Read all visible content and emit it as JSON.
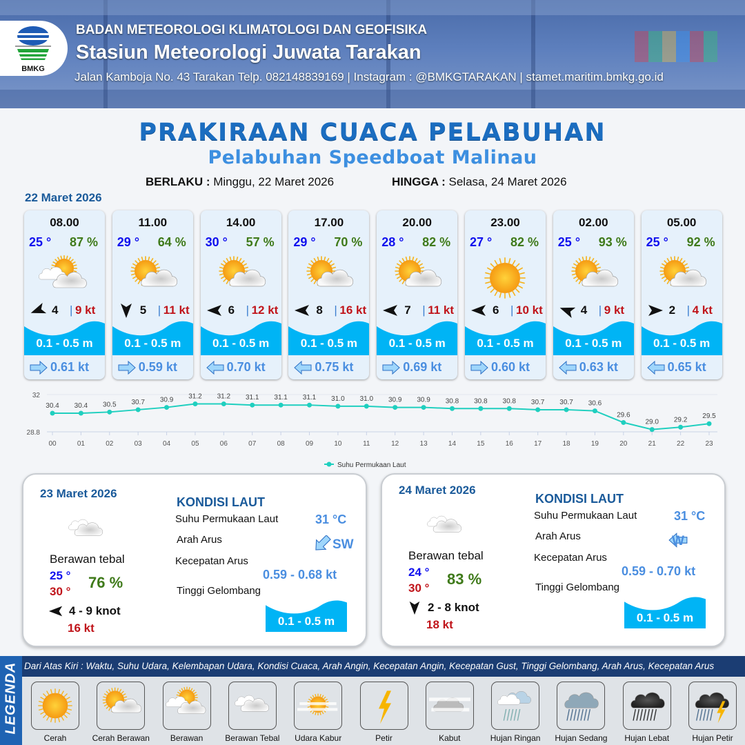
{
  "header": {
    "agency": "BADAN METEOROLOGI KLIMATOLOGI DAN GEOFISIKA",
    "station": "Stasiun Meteorologi Juwata Tarakan",
    "contact": "Jalan Kamboja No. 43 Tarakan  Telp. 082148839169 | Instagram : @BMKGTARAKAN | stamet.maritim.bmkg.go.id",
    "logo_text": "BMKG"
  },
  "title": "PRAKIRAAN CUACA PELABUHAN",
  "subtitle": "Pelabuhan Speedboat Malinau",
  "validity": {
    "from_label": "BERLAKU :",
    "from": "Minggu, 22 Maret 2026",
    "to_label": "HINGGA :",
    "to": "Selasa, 24 Maret 2026"
  },
  "day1": {
    "date": "22 Maret 2026",
    "cards": [
      {
        "time": "08.00",
        "temp": "25 °",
        "hum": "87 %",
        "icon": "berawan",
        "wind_dir": "WSW",
        "wind": "4",
        "gust": "9 kt",
        "wave": "0.1 - 0.5 m",
        "cur_dir": "right",
        "cur": "0.61 kt"
      },
      {
        "time": "11.00",
        "temp": "29 °",
        "hum": "64 %",
        "icon": "cerah-berawan",
        "wind_dir": "S",
        "wind": "5",
        "gust": "11 kt",
        "wave": "0.1 - 0.5 m",
        "cur_dir": "right",
        "cur": "0.59 kt"
      },
      {
        "time": "14.00",
        "temp": "30 °",
        "hum": "57 %",
        "icon": "cerah-berawan",
        "wind_dir": "W",
        "wind": "6",
        "gust": "12 kt",
        "wave": "0.1 - 0.5 m",
        "cur_dir": "left",
        "cur": "0.70 kt"
      },
      {
        "time": "17.00",
        "temp": "29 °",
        "hum": "70 %",
        "icon": "cerah-berawan",
        "wind_dir": "W",
        "wind": "8",
        "gust": "16 kt",
        "wave": "0.1 - 0.5 m",
        "cur_dir": "left",
        "cur": "0.75 kt"
      },
      {
        "time": "20.00",
        "temp": "28 °",
        "hum": "82 %",
        "icon": "cerah-berawan",
        "wind_dir": "W",
        "wind": "7",
        "gust": "11 kt",
        "wave": "0.1 - 0.5 m",
        "cur_dir": "right",
        "cur": "0.69 kt"
      },
      {
        "time": "23.00",
        "temp": "27 °",
        "hum": "82 %",
        "icon": "cerah",
        "wind_dir": "W",
        "wind": "6",
        "gust": "10 kt",
        "wave": "0.1 - 0.5 m",
        "cur_dir": "right",
        "cur": "0.60 kt"
      },
      {
        "time": "02.00",
        "temp": "25 °",
        "hum": "93 %",
        "icon": "cerah-berawan",
        "wind_dir": "WNW",
        "wind": "4",
        "gust": "9 kt",
        "wave": "0.1 - 0.5 m",
        "cur_dir": "left",
        "cur": "0.63 kt"
      },
      {
        "time": "05.00",
        "temp": "25 °",
        "hum": "92 %",
        "icon": "cerah-berawan",
        "wind_dir": "E",
        "wind": "2",
        "gust": "4 kt",
        "wave": "0.1 - 0.5 m",
        "cur_dir": "left",
        "cur": "0.65 kt"
      }
    ]
  },
  "chart_data": {
    "type": "line",
    "x": [
      "00",
      "01",
      "02",
      "03",
      "04",
      "05",
      "06",
      "07",
      "08",
      "09",
      "10",
      "11",
      "12",
      "13",
      "14",
      "15",
      "16",
      "17",
      "18",
      "19",
      "20",
      "21",
      "22",
      "23"
    ],
    "series": [
      {
        "name": "Suhu Permukaan Laut",
        "values": [
          30.4,
          30.4,
          30.5,
          30.7,
          30.9,
          31.2,
          31.2,
          31.1,
          31.1,
          31.1,
          31.0,
          31.0,
          30.9,
          30.9,
          30.8,
          30.8,
          30.8,
          30.7,
          30.7,
          30.6,
          29.6,
          29.0,
          29.2,
          29.5
        ]
      }
    ],
    "yticks": [
      "32",
      "28.8"
    ],
    "ylim": [
      28.8,
      32
    ],
    "color": "#1fcfbf",
    "legend": "bottom",
    "grid": false
  },
  "days": [
    {
      "date": "23 Maret 2026",
      "icon": "berawan-tebal",
      "cond": "Berawan tebal",
      "tmin": "25 °",
      "tmax": "30 °",
      "hum": "76 %",
      "wind_dir": "W",
      "wind": "4  - 9 knot",
      "gust": "16 kt",
      "sea": {
        "title": "KONDISI LAUT",
        "sst_label": "Suhu Permukaan Laut",
        "sst": "31 °C",
        "dir_label": "Arah Arus",
        "dir": "SW",
        "speed_label": "Kecepatan Arus",
        "speed": "0.59 - 0.68 kt",
        "wave_label": "Tinggi Gelombang",
        "wave": "0.1 - 0.5 m"
      }
    },
    {
      "date": "24 Maret 2026",
      "icon": "berawan-tebal",
      "cond": "Berawan tebal",
      "tmin": "24 °",
      "tmax": "30 °",
      "hum": "83 %",
      "wind_dir": "S",
      "wind": "2  - 8 knot",
      "gust": "18 kt",
      "sea": {
        "title": "KONDISI LAUT",
        "sst_label": "Suhu Permukaan Laut",
        "sst": "31 °C",
        "dir_label": "Arah Arus",
        "dir": "W",
        "speed_label": "Kecepatan Arus",
        "speed": "0.59 - 0.70 kt",
        "wave_label": "Tinggi Gelombang",
        "wave": "0.1 - 0.5 m"
      }
    }
  ],
  "legend": {
    "title": "LEGENDA",
    "description": "Dari Atas Kiri : Waktu, Suhu Udara, Kelembapan Udara, Kondisi Cuaca, Arah Angin, Kecepatan Angin, Kecepatan Gust, Tinggi Gelombang, Arah Arus, Kecepatan Arus",
    "items": [
      {
        "label": "Cerah",
        "icon": "cerah"
      },
      {
        "label": "Cerah Berawan",
        "icon": "cerah-berawan"
      },
      {
        "label": "Berawan",
        "icon": "berawan"
      },
      {
        "label": "Berawan Tebal",
        "icon": "berawan-tebal"
      },
      {
        "label": "Udara Kabur",
        "icon": "udara-kabur"
      },
      {
        "label": "Petir",
        "icon": "petir"
      },
      {
        "label": "Kabut",
        "icon": "kabut"
      },
      {
        "label": "Hujan Ringan",
        "icon": "hujan-ringan"
      },
      {
        "label": "Hujan Sedang",
        "icon": "hujan-sedang"
      },
      {
        "label": "Hujan Lebat",
        "icon": "hujan-lebat"
      },
      {
        "label": "Hujan Petir",
        "icon": "hujan-petir"
      }
    ]
  },
  "colors": {
    "title": "#1b6dc0",
    "wave": "#00b4f5",
    "temp": "#1010ee",
    "humidity": "#3f7a1a",
    "gust": "#c0141a",
    "current": "#4a8ee0"
  }
}
